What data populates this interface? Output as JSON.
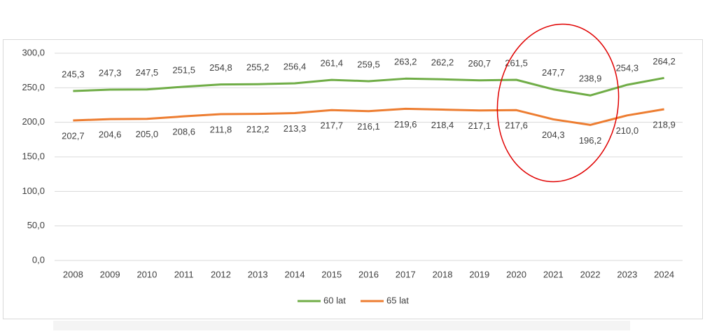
{
  "chart_data": {
    "type": "line",
    "categories": [
      "2008",
      "2009",
      "2010",
      "2011",
      "2012",
      "2013",
      "2014",
      "2015",
      "2016",
      "2017",
      "2018",
      "2019",
      "2020",
      "2021",
      "2022",
      "2023",
      "2024"
    ],
    "series": [
      {
        "name": "60 lat",
        "color": "#70ad47",
        "values": [
          245.3,
          247.3,
          247.5,
          251.5,
          254.8,
          255.2,
          256.4,
          261.4,
          259.5,
          263.2,
          262.2,
          260.7,
          261.5,
          247.7,
          238.9,
          254.3,
          264.2
        ],
        "value_labels": [
          "245,3",
          "247,3",
          "247,5",
          "251,5",
          "254,8",
          "255,2",
          "256,4",
          "261,4",
          "259,5",
          "263,2",
          "262,2",
          "260,7",
          "261,5",
          "247,7",
          "238,9",
          "254,3",
          "264,2"
        ]
      },
      {
        "name": "65 lat",
        "color": "#ed7d31",
        "values": [
          202.7,
          204.6,
          205.0,
          208.6,
          211.8,
          212.2,
          213.3,
          217.7,
          216.1,
          219.6,
          218.4,
          217.1,
          217.6,
          204.3,
          196.2,
          210.0,
          218.9
        ],
        "value_labels": [
          "202,7",
          "204,6",
          "205,0",
          "208,6",
          "211,8",
          "212,2",
          "213,3",
          "217,7",
          "216,1",
          "219,6",
          "218,4",
          "217,1",
          "217,6",
          "204,3",
          "196,2",
          "210,0",
          "218,9"
        ]
      }
    ],
    "ylim": [
      0,
      300
    ],
    "yticks": [
      {
        "value": 0,
        "label": "0,0"
      },
      {
        "value": 50,
        "label": "50,0"
      },
      {
        "value": 100,
        "label": "100,0"
      },
      {
        "value": 150,
        "label": "150,0"
      },
      {
        "value": 200,
        "label": "200,0"
      },
      {
        "value": 250,
        "label": "250,0"
      },
      {
        "value": 300,
        "label": "300,0"
      }
    ],
    "grid": true,
    "legend": "bottom"
  }
}
